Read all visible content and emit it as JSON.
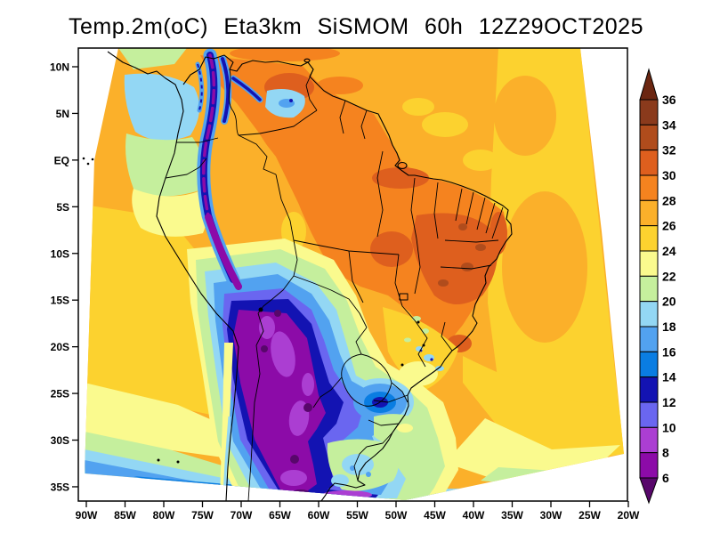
{
  "title": "Temp.2m(oC) Eta3km SiSMOM 60h 12Z29OCT2025",
  "axes": {
    "lat_labels": [
      "10N",
      "5N",
      "EQ",
      "5S",
      "10S",
      "15S",
      "20S",
      "25S",
      "30S",
      "35S"
    ],
    "lon_labels": [
      "90W",
      "85W",
      "80W",
      "75W",
      "70W",
      "65W",
      "60W",
      "55W",
      "50W",
      "45W",
      "40W",
      "35W",
      "30W",
      "25W",
      "20W"
    ]
  },
  "colorbar": {
    "tick_labels": [
      "36",
      "34",
      "32",
      "30",
      "28",
      "26",
      "24",
      "22",
      "20",
      "18",
      "16",
      "14",
      "12",
      "10",
      "8",
      "6"
    ],
    "segment_colors": [
      "#8A3A1C",
      "#B04C1C",
      "#DE5F1E",
      "#F5831F",
      "#FBB02A",
      "#FCD22F",
      "#FAFA8E",
      "#C5EF9D",
      "#93D7F4",
      "#52A2F0",
      "#0A7DE2",
      "#1313B2",
      "#6A66F0",
      "#AB3ED2",
      "#8C0BA8"
    ],
    "above_range_color": "#6B2611",
    "below_range_color": "#58076B"
  },
  "chart_data": {
    "type": "heatmap",
    "title": "Temp.2m(oC) Eta3km SiSMOM 60h 12Z29OCT2025",
    "variable": "2-m air temperature (oC)",
    "model": "Eta3km SiSMOM",
    "forecast_hour": "60h",
    "valid_time": "12Z29OCT2025",
    "x_ticks": [
      "90W",
      "85W",
      "80W",
      "75W",
      "70W",
      "65W",
      "60W",
      "55W",
      "50W",
      "45W",
      "40W",
      "35W",
      "30W",
      "25W",
      "20W"
    ],
    "y_ticks": [
      "10N",
      "5N",
      "EQ",
      "5S",
      "10S",
      "15S",
      "20S",
      "25S",
      "30S",
      "35S"
    ],
    "scale_levels_degC": [
      36,
      34,
      32,
      30,
      28,
      26,
      24,
      22,
      20,
      18,
      16,
      14,
      12,
      10,
      8,
      6
    ],
    "legend_position": "right",
    "values_read_from_map": [
      {
        "region": "Andes cordillera (Colombia to Chile) and high Altiplano",
        "approx_temp_C": "below 6 to 10"
      },
      {
        "region": "Cold air mass over Chile/Argentina extending to Paraguay",
        "approx_temp_C": "6 to 16"
      },
      {
        "region": "Uruguay and far southern Brazil",
        "approx_temp_C": "16 to 22"
      },
      {
        "region": "Cold pocket over Sao Paulo/Parana region",
        "approx_temp_C": "12 to 18"
      },
      {
        "region": "Amazon basin, Venezuela and interior northeast Brazil",
        "approx_temp_C": "28 to 32"
      },
      {
        "region": "Tropical Atlantic and Caribbean waters",
        "approx_temp_C": "26 to 28"
      },
      {
        "region": "Subtropical South Atlantic and Pacific waters",
        "approx_temp_C": "20 to 26"
      },
      {
        "region": "Southern ocean edge of domain (about 35S)",
        "approx_temp_C": "14 to 18"
      },
      {
        "region": "Pacific patch south of Panama",
        "approx_temp_C": "18 to 20"
      }
    ]
  }
}
